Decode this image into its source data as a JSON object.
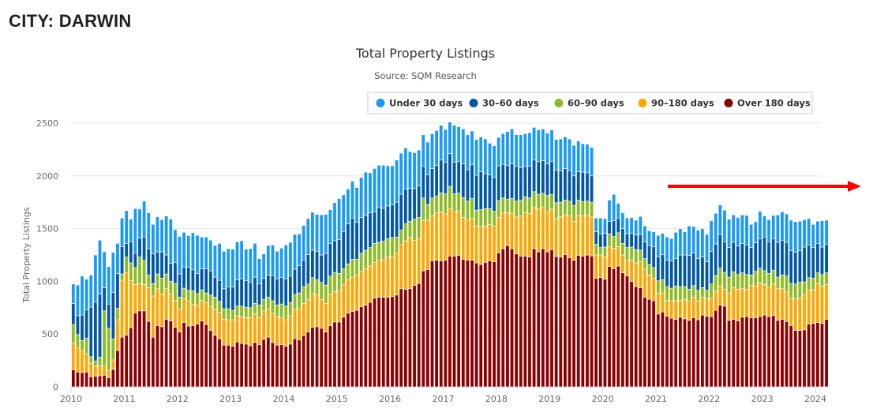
{
  "page": {
    "heading": "CITY: DARWIN"
  },
  "annotation": {
    "arrow_color": "#ff0000",
    "arrow_direction": "right"
  },
  "chart_data": {
    "type": "bar",
    "stacked": true,
    "title": "Total Property Listings",
    "subtitle": "Source: SQM Research",
    "xlabel": "",
    "ylabel": "Total Property Listings",
    "ylim": [
      0,
      2500
    ],
    "yticks": [
      0,
      500,
      1000,
      1500,
      2000,
      2500
    ],
    "xticks": [
      "2010",
      "2011",
      "2012",
      "2013",
      "2014",
      "2015",
      "2016",
      "2017",
      "2018",
      "2019",
      "2020",
      "2021",
      "2022",
      "2023",
      "2024"
    ],
    "x_start": "2010-01",
    "frequency": "monthly",
    "grid": true,
    "legend": {
      "placement": "top-right"
    },
    "series": [
      {
        "name": "Over 180 days",
        "color": "#8b0000",
        "values": [
          160,
          140,
          135,
          140,
          95,
          100,
          105,
          110,
          85,
          165,
          345,
          470,
          490,
          560,
          700,
          720,
          720,
          620,
          470,
          580,
          570,
          640,
          625,
          565,
          520,
          610,
          575,
          580,
          595,
          625,
          590,
          535,
          490,
          455,
          395,
          395,
          385,
          425,
          410,
          405,
          390,
          420,
          400,
          450,
          470,
          420,
          395,
          400,
          385,
          405,
          455,
          445,
          485,
          520,
          565,
          570,
          555,
          520,
          580,
          615,
          615,
          660,
          700,
          715,
          725,
          760,
          775,
          800,
          840,
          850,
          850,
          850,
          855,
          870,
          930,
          925,
          930,
          960,
          980,
          1100,
          1110,
          1195,
          1200,
          1195,
          1200,
          1240,
          1240,
          1245,
          1210,
          1200,
          1200,
          1175,
          1160,
          1180,
          1195,
          1185,
          1270,
          1310,
          1340,
          1310,
          1260,
          1240,
          1240,
          1230,
          1310,
          1280,
          1310,
          1280,
          1300,
          1235,
          1230,
          1255,
          1225,
          1200,
          1245,
          1240,
          1250,
          1240,
          1030,
          1035,
          1020,
          1140,
          1120,
          1145,
          1080,
          1050,
          1000,
          950,
          940,
          850,
          830,
          815,
          690,
          710,
          670,
          650,
          640,
          660,
          645,
          630,
          655,
          635,
          680,
          670,
          665,
          725,
          775,
          765,
          630,
          640,
          625,
          660,
          665,
          655,
          655,
          665,
          680,
          665,
          675,
          630,
          640,
          620,
          580,
          535,
          535,
          540,
          595,
          600,
          610,
          600,
          640
        ]
      },
      {
        "name": "90-180 days",
        "color": "#ffa500",
        "values": [
          255,
          230,
          205,
          170,
          130,
          95,
          95,
          90,
          70,
          90,
          290,
          540,
          590,
          450,
          270,
          260,
          250,
          320,
          390,
          350,
          310,
          290,
          255,
          255,
          220,
          225,
          240,
          200,
          180,
          195,
          210,
          225,
          245,
          250,
          245,
          240,
          250,
          245,
          255,
          250,
          265,
          270,
          255,
          270,
          270,
          275,
          270,
          255,
          250,
          265,
          280,
          295,
          305,
          310,
          320,
          305,
          275,
          270,
          295,
          290,
          295,
          310,
          315,
          325,
          335,
          335,
          345,
          345,
          340,
          350,
          355,
          380,
          380,
          400,
          420,
          460,
          490,
          430,
          425,
          480,
          470,
          425,
          450,
          465,
          440,
          450,
          420,
          420,
          395,
          380,
          395,
          350,
          360,
          340,
          345,
          340,
          335,
          340,
          310,
          335,
          350,
          380,
          410,
          415,
          390,
          405,
          395,
          375,
          385,
          360,
          380,
          375,
          395,
          370,
          385,
          380,
          380,
          370,
          220,
          215,
          215,
          190,
          195,
          185,
          170,
          150,
          205,
          220,
          245,
          265,
          230,
          215,
          195,
          180,
          150,
          165,
          175,
          160,
          185,
          185,
          195,
          180,
          170,
          165,
          170,
          180,
          180,
          160,
          260,
          300,
          300,
          270,
          260,
          305,
          300,
          320,
          290,
          280,
          300,
          300,
          290,
          280,
          260,
          300,
          305,
          335,
          320,
          320,
          370,
          355,
          330
        ]
      },
      {
        "name": "60-90 days",
        "color": "#8dbb24",
        "values": [
          175,
          125,
          100,
          150,
          60,
          50,
          80,
          520,
          400,
          200,
          110,
          60,
          150,
          165,
          160,
          250,
          230,
          120,
          120,
          140,
          150,
          140,
          120,
          160,
          110,
          100,
          100,
          130,
          110,
          100,
          90,
          110,
          115,
          105,
          100,
          105,
          90,
          95,
          100,
          100,
          95,
          100,
          120,
          110,
          110,
          120,
          110,
          130,
          130,
          130,
          140,
          150,
          160,
          145,
          150,
          140,
          160,
          175,
          175,
          180,
          165,
          150,
          150,
          170,
          150,
          170,
          175,
          175,
          180,
          170,
          175,
          175,
          180,
          150,
          135,
          160,
          150,
          200,
          200,
          210,
          150,
          170,
          160,
          180,
          190,
          210,
          170,
          170,
          190,
          180,
          190,
          150,
          160,
          170,
          150,
          140,
          160,
          140,
          130,
          140,
          150,
          150,
          150,
          145,
          150,
          140,
          130,
          160,
          140,
          150,
          140,
          140,
          140,
          150,
          140,
          135,
          130,
          140,
          100,
          70,
          90,
          120,
          110,
          130,
          110,
          120,
          120,
          130,
          110,
          100,
          100,
          100,
          120,
          125,
          130,
          120,
          140,
          130,
          120,
          110,
          110,
          100,
          90,
          80,
          140,
          150,
          170,
          160,
          150,
          150,
          140,
          150,
          140,
          100,
          140,
          140,
          130,
          130,
          130,
          110,
          130,
          150,
          140,
          140,
          150,
          120,
          120,
          110,
          100,
          110,
          110
        ]
      },
      {
        "name": "30-60 days",
        "color": "#0057a8",
        "values": [
          200,
          180,
          240,
          270,
          470,
          560,
          600,
          220,
          230,
          440,
          330,
          260,
          130,
          200,
          140,
          180,
          220,
          250,
          280,
          210,
          250,
          180,
          170,
          200,
          220,
          200,
          220,
          200,
          190,
          200,
          230,
          230,
          190,
          200,
          190,
          210,
          220,
          250,
          260,
          250,
          240,
          250,
          200,
          200,
          210,
          240,
          250,
          250,
          260,
          250,
          240,
          260,
          250,
          280,
          260,
          270,
          260,
          300,
          310,
          300,
          320,
          350,
          380,
          390,
          350,
          340,
          330,
          330,
          300,
          330,
          310,
          310,
          310,
          330,
          340,
          330,
          310,
          290,
          300,
          300,
          280,
          280,
          290,
          310,
          300,
          310,
          300,
          300,
          320,
          300,
          320,
          330,
          360,
          330,
          320,
          320,
          330,
          320,
          320,
          330,
          330,
          310,
          290,
          300,
          300,
          310,
          310,
          300,
          310,
          310,
          300,
          300,
          290,
          280,
          270,
          280,
          270,
          250,
          120,
          130,
          130,
          120,
          150,
          140,
          140,
          130,
          130,
          140,
          150,
          160,
          180,
          200,
          230,
          240,
          250,
          260,
          260,
          300,
          300,
          320,
          310,
          300,
          290,
          270,
          310,
          300,
          320,
          290,
          280,
          280,
          270,
          280,
          280,
          260,
          270,
          280,
          320,
          300,
          300,
          330,
          330,
          320,
          310,
          300,
          300,
          330,
          310,
          290,
          280,
          260,
          270
        ]
      },
      {
        "name": "Under 30 days",
        "color": "#1a9af5",
        "values": [
          185,
          290,
          370,
          290,
          305,
          445,
          510,
          340,
          355,
          380,
          285,
          270,
          310,
          215,
          420,
          275,
          340,
          340,
          280,
          330,
          305,
          370,
          420,
          310,
          355,
          330,
          300,
          350,
          360,
          300,
          300,
          290,
          300,
          350,
          355,
          360,
          360,
          360,
          360,
          300,
          320,
          320,
          240,
          230,
          280,
          290,
          260,
          280,
          320,
          320,
          330,
          300,
          330,
          340,
          360,
          350,
          380,
          370,
          320,
          360,
          390,
          350,
          330,
          350,
          330,
          380,
          410,
          380,
          410,
          400,
          410,
          380,
          370,
          400,
          390,
          390,
          350,
          340,
          340,
          300,
          310,
          330,
          330,
          330,
          310,
          300,
          350,
          330,
          330,
          330,
          320,
          340,
          330,
          330,
          300,
          300,
          270,
          290,
          320,
          330,
          300,
          310,
          310,
          320,
          310,
          300,
          300,
          290,
          300,
          290,
          300,
          300,
          300,
          290,
          290,
          270,
          270,
          270,
          130,
          150,
          140,
          200,
          250,
          140,
          150,
          150,
          150,
          140,
          170,
          150,
          140,
          140,
          200,
          200,
          220,
          210,
          250,
          250,
          220,
          280,
          250,
          270,
          270,
          260,
          290,
          290,
          280,
          300,
          270,
          260,
          270,
          270,
          280,
          220,
          200,
          260,
          200,
          210,
          220,
          260,
          270,
          270,
          290,
          290,
          280,
          260,
          250,
          220,
          210,
          250,
          230
        ]
      }
    ]
  }
}
